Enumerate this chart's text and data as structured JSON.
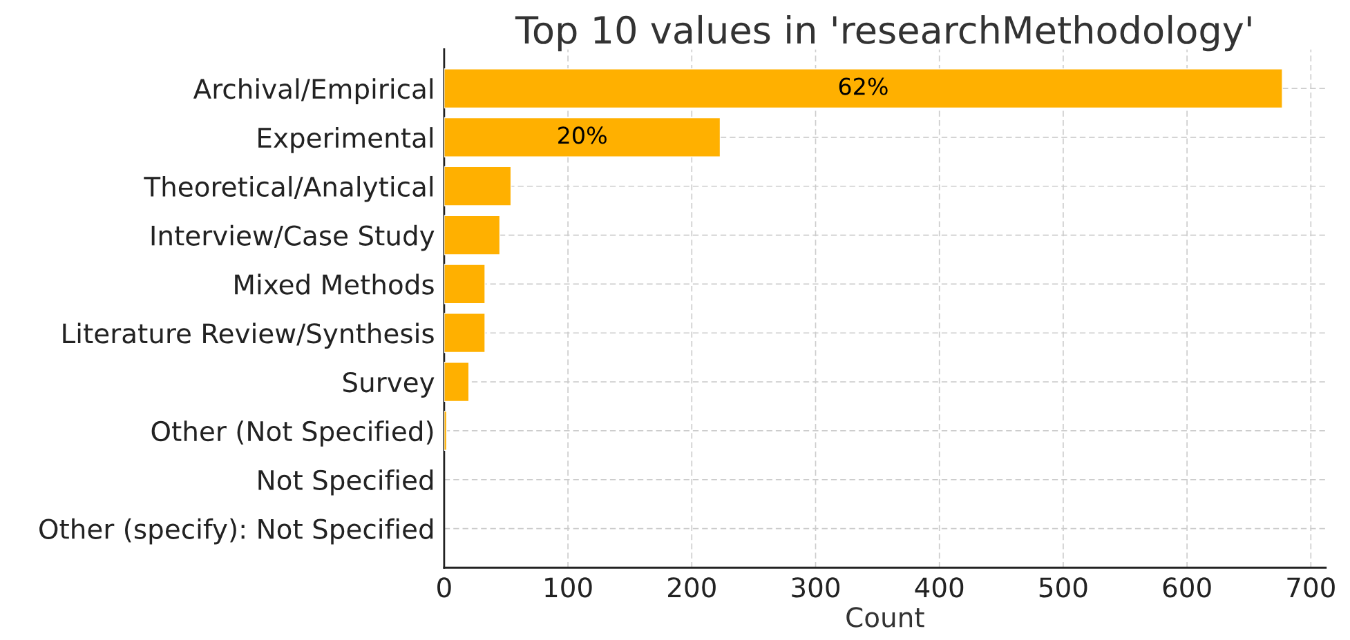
{
  "chart_data": {
    "type": "bar",
    "orientation": "horizontal",
    "title": "Top 10 values in 'researchMethodology'",
    "xlabel": "Count",
    "categories": [
      "Archival/Empirical",
      "Experimental",
      "Theoretical/Analytical",
      "Interview/Case Study",
      "Mixed Methods",
      "Literature Review/Synthesis",
      "Survey",
      "Other (Not Specified)",
      "Not Specified",
      "Other (specify): Not Specified"
    ],
    "values": [
      677,
      223,
      54,
      45,
      33,
      33,
      20,
      2,
      null,
      null
    ],
    "annotations": [
      "62%",
      "20%"
    ],
    "color": "#ffb000",
    "xlim": [
      0,
      712
    ],
    "xticks": [
      0,
      100,
      200,
      300,
      400,
      500,
      600,
      700
    ],
    "grid": true
  }
}
